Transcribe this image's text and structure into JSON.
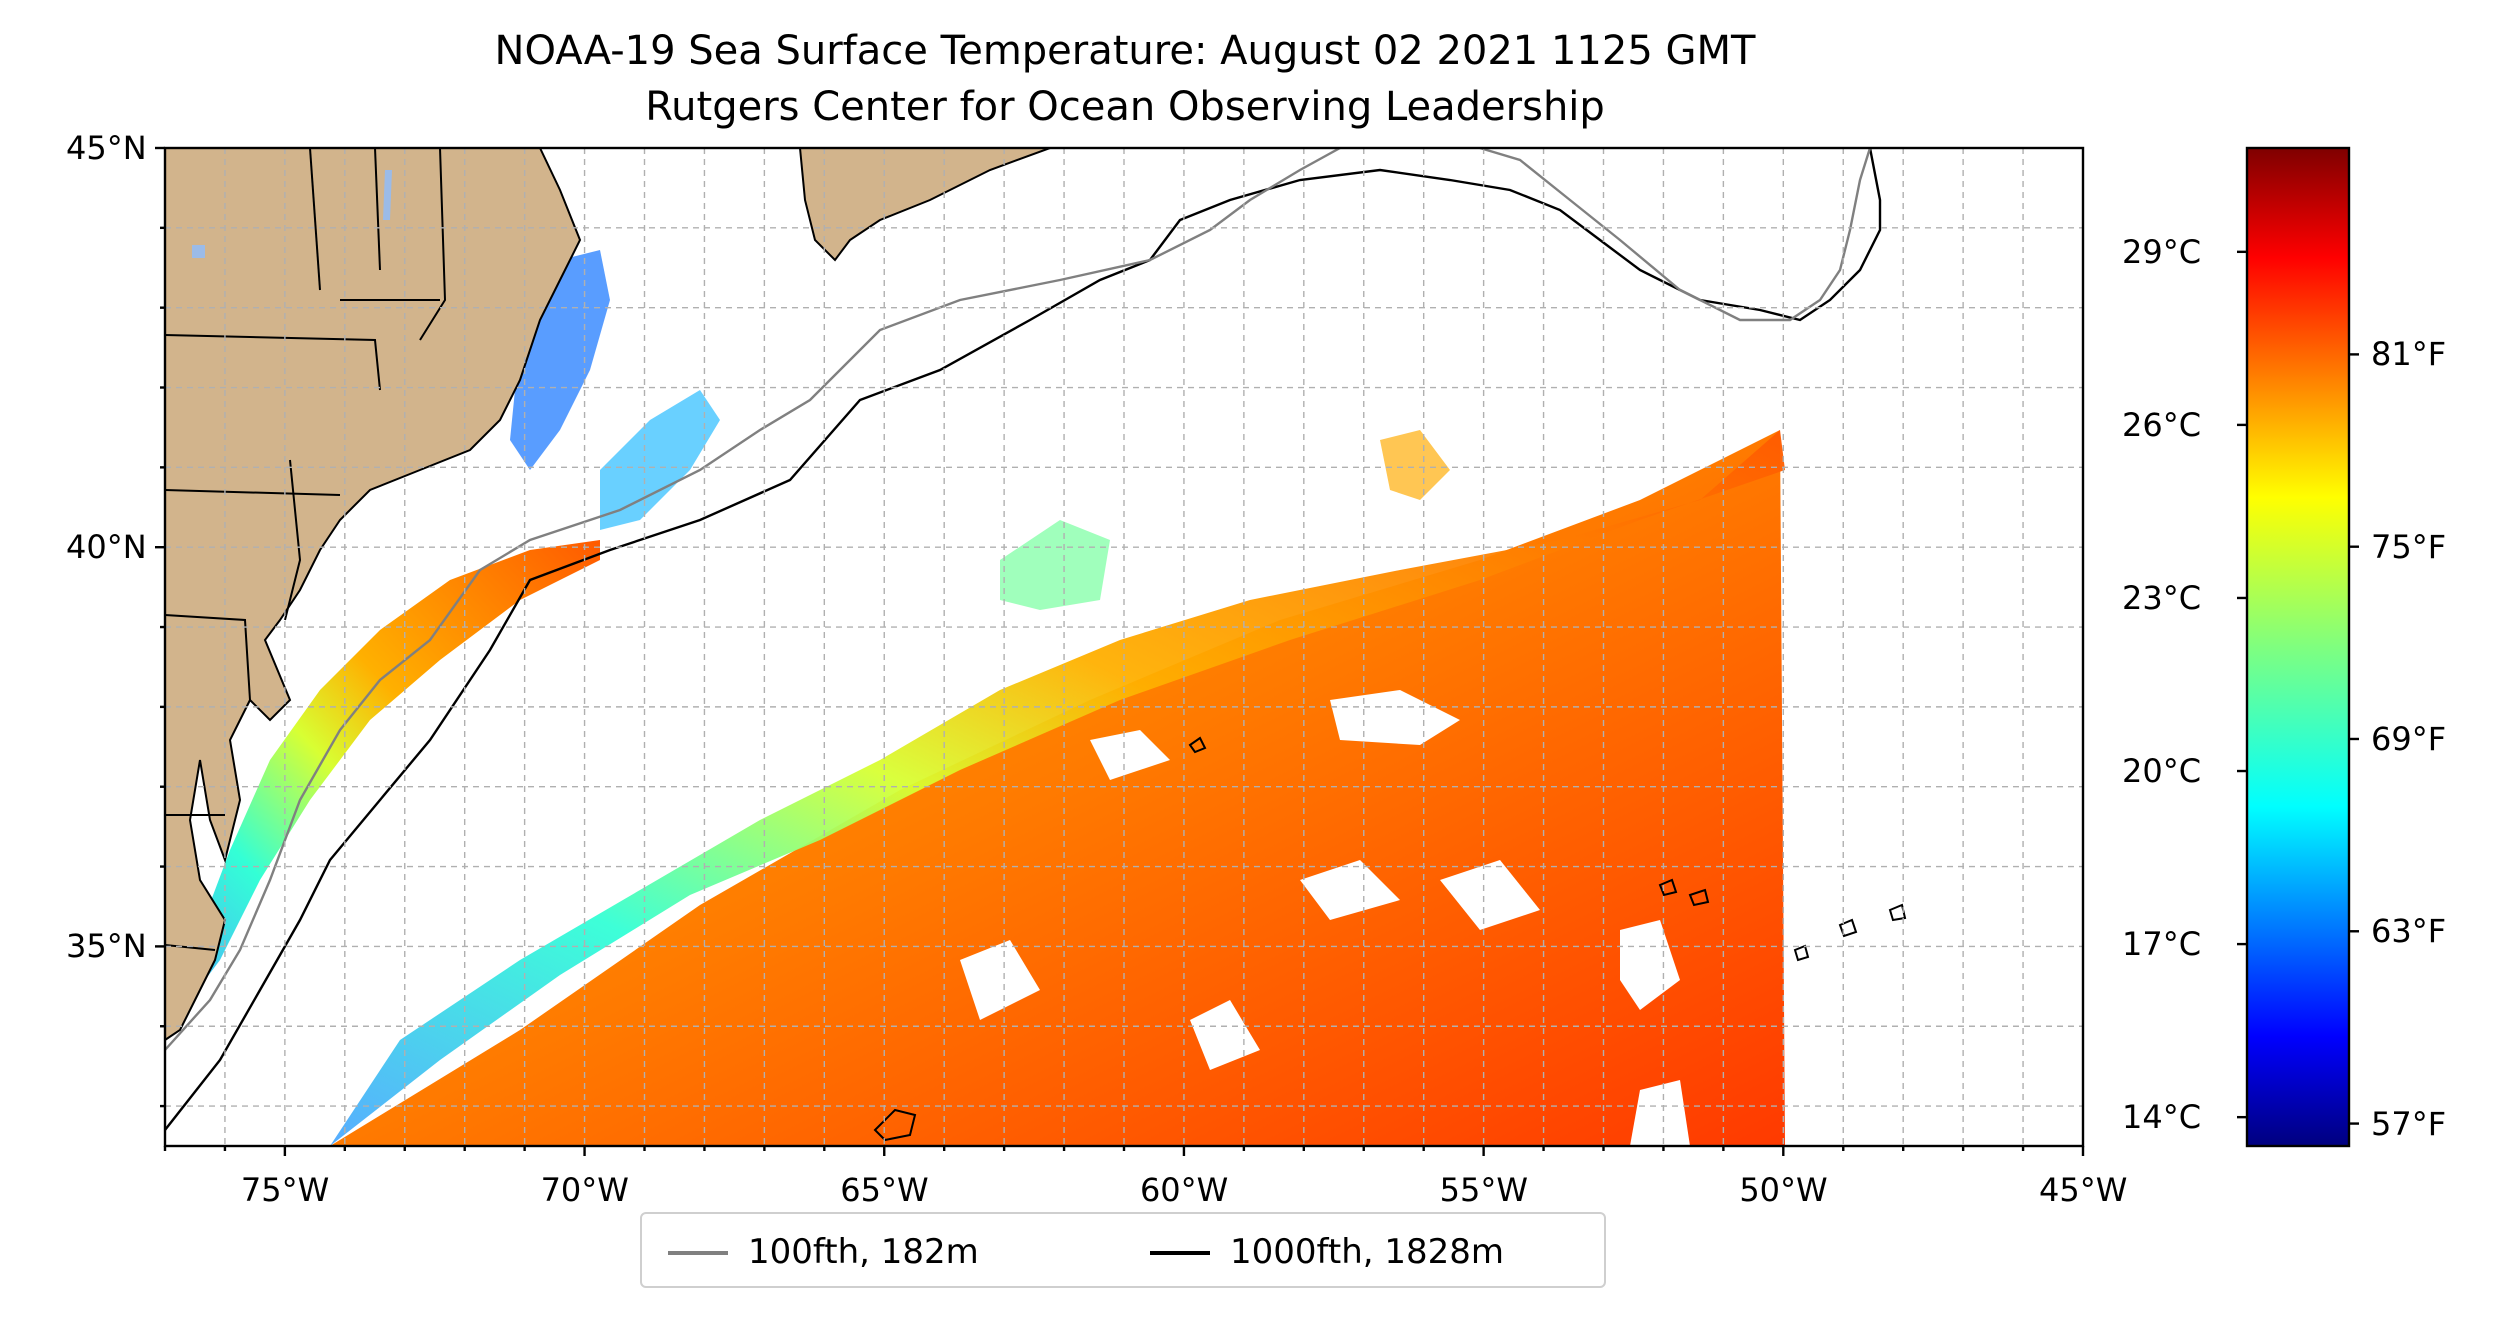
{
  "title": {
    "line1": "NOAA-19 Sea Surface Temperature: August 02 2021 1125 GMT",
    "line2": "Rutgers Center for Ocean Observing Leadership"
  },
  "map": {
    "lon_range": [
      -77,
      -45
    ],
    "lat_range": [
      32.5,
      45
    ],
    "lon_ticks": [
      {
        "value": -75,
        "label": "75°W"
      },
      {
        "value": -70,
        "label": "70°W"
      },
      {
        "value": -65,
        "label": "65°W"
      },
      {
        "value": -60,
        "label": "60°W"
      },
      {
        "value": -55,
        "label": "55°W"
      },
      {
        "value": -50,
        "label": "50°W"
      },
      {
        "value": -45,
        "label": "45°W"
      }
    ],
    "lat_ticks": [
      {
        "value": 45,
        "label": "45°N"
      },
      {
        "value": 40,
        "label": "40°N"
      },
      {
        "value": 35,
        "label": "35°N"
      }
    ],
    "grid": true,
    "colors": {
      "land": "#d2b48c",
      "ocean_no_data": "#ffffff",
      "isobath_100": "#808080",
      "isobath_1000": "#000000",
      "grid": "#b0b0b0"
    }
  },
  "colorbar": {
    "colormap": "jet",
    "range_c": [
      13.5,
      30.8
    ],
    "celsius_ticks": [
      {
        "value": 29,
        "label": "29°C"
      },
      {
        "value": 26,
        "label": "26°C"
      },
      {
        "value": 23,
        "label": "23°C"
      },
      {
        "value": 20,
        "label": "20°C"
      },
      {
        "value": 17,
        "label": "17°C"
      },
      {
        "value": 14,
        "label": "14°C"
      }
    ],
    "fahrenheit_ticks": [
      {
        "value": 81,
        "label": "81°F"
      },
      {
        "value": 75,
        "label": "75°F"
      },
      {
        "value": 69,
        "label": "69°F"
      },
      {
        "value": 63,
        "label": "63°F"
      },
      {
        "value": 57,
        "label": "57°F"
      }
    ]
  },
  "legend": {
    "items": [
      {
        "label": "100fth, 182m",
        "color": "#808080"
      },
      {
        "label": "1000fth, 1828m",
        "color": "#000000"
      }
    ]
  }
}
